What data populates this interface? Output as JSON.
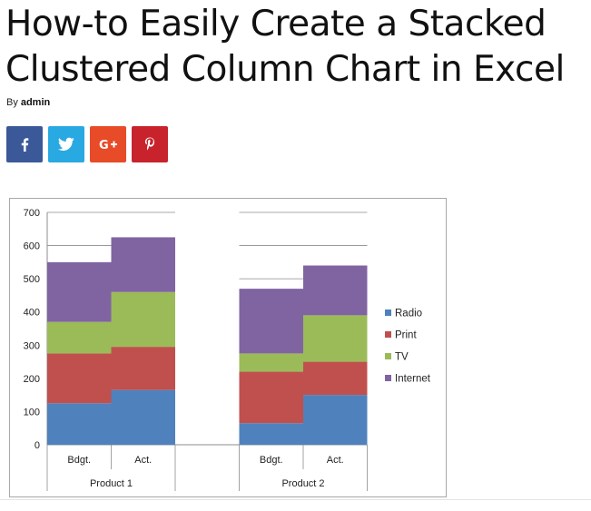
{
  "article": {
    "title": "How-to Easily Create a Stacked Clustered Column Chart in Excel",
    "by_label": "By",
    "author": "admin"
  },
  "share": [
    {
      "name": "facebook",
      "icon": "facebook-icon",
      "color": "#3b5998"
    },
    {
      "name": "twitter",
      "icon": "twitter-icon",
      "color": "#29a9e1"
    },
    {
      "name": "google-plus",
      "icon": "google-plus-icon",
      "color": "#e74b27"
    },
    {
      "name": "pinterest",
      "icon": "pinterest-icon",
      "color": "#c8232c"
    }
  ],
  "chart_data": {
    "type": "bar",
    "stacked": true,
    "title": "",
    "xlabel": "",
    "ylabel": "",
    "ylim": [
      0,
      700
    ],
    "yticks": [
      0,
      100,
      200,
      300,
      400,
      500,
      600,
      700
    ],
    "grid": true,
    "legend_position": "right",
    "groups": [
      {
        "label": "Product 1",
        "categories": [
          "Bdgt.",
          "Act."
        ]
      },
      {
        "label": "",
        "categories": [
          ""
        ]
      },
      {
        "label": "Product 2",
        "categories": [
          "Bdgt.",
          "Act."
        ]
      }
    ],
    "categories": [
      "Product 1 Bdgt.",
      "Product 1 Act.",
      "",
      "Product 2 Bdgt.",
      "Product 2 Act."
    ],
    "series": [
      {
        "name": "Radio",
        "color": "#4f81bd",
        "values": [
          125,
          165,
          null,
          65,
          150
        ]
      },
      {
        "name": "Print",
        "color": "#c0504d",
        "values": [
          150,
          130,
          null,
          155,
          100
        ]
      },
      {
        "name": "TV",
        "color": "#9bbb59",
        "values": [
          95,
          165,
          null,
          55,
          140
        ]
      },
      {
        "name": "Internet",
        "color": "#8064a2",
        "values": [
          180,
          165,
          null,
          195,
          150
        ]
      }
    ]
  }
}
